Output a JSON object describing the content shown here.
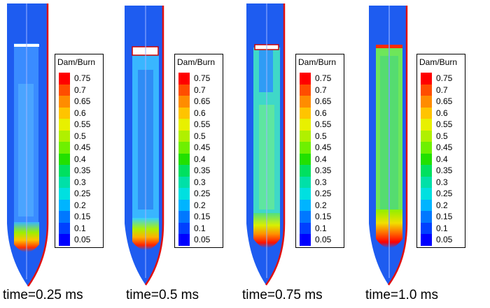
{
  "legend": {
    "title": "Dam/Burn",
    "levels": [
      "0.75",
      "0.7",
      "0.65",
      "0.6",
      "0.55",
      "0.5",
      "0.45",
      "0.4",
      "0.35",
      "0.3",
      "0.25",
      "0.2",
      "0.15",
      "0.1",
      "0.05"
    ],
    "colors": [
      "#ff0000",
      "#ff4d00",
      "#ff8c00",
      "#ffc400",
      "#e8f000",
      "#b0f000",
      "#6ef000",
      "#22e000",
      "#00e060",
      "#00e0a8",
      "#00e0e0",
      "#00b4ff",
      "#0078ff",
      "#0040ff",
      "#0000ff"
    ]
  },
  "panels": [
    {
      "caption": "time=0.25 ms",
      "body_color": "#1e5cf0",
      "core_color": "#3a8cff",
      "tip_level": 0.75
    },
    {
      "caption": "time=0.5 ms",
      "body_color": "#1e5cf0",
      "core_color": "#39b6ff",
      "tip_level": 0.75
    },
    {
      "caption": "time=0.75 ms",
      "body_color": "#1e5cf0",
      "core_color": "#3fd8c8",
      "tip_level": 0.75
    },
    {
      "caption": "time=1.0 ms",
      "body_color": "#1e5cf0",
      "core_color": "#6ee65a",
      "tip_level": 0.75
    }
  ]
}
